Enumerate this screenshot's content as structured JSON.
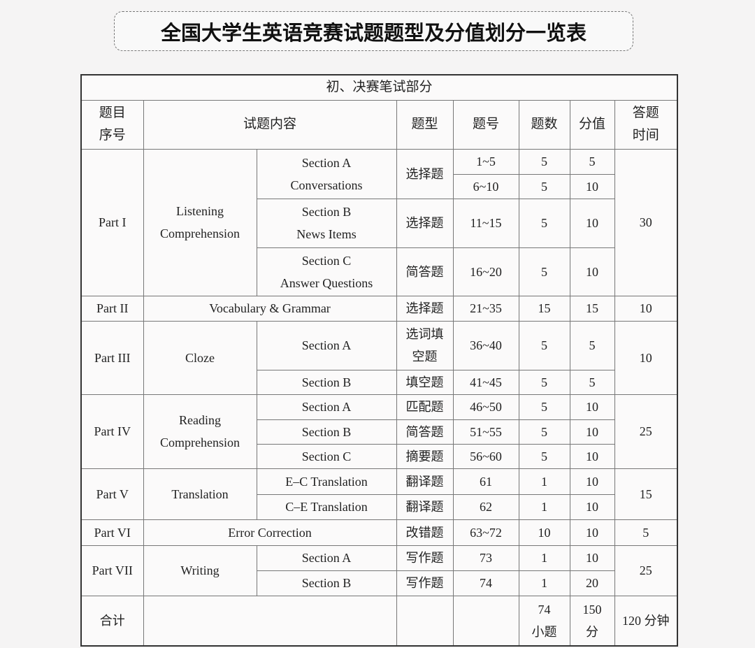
{
  "title": "全国大学生英语竞赛试题题型及分值划分一览表",
  "table": {
    "caption": "初、决赛笔试部分",
    "headers": [
      "题目\n序号",
      "试题内容",
      "题型",
      "题号",
      "题数",
      "分值",
      "答题\n时间"
    ],
    "rows": [
      [
        "Part I",
        "Listening\nComprehension",
        "Section A\nConversations",
        "选择题",
        "1~5",
        "5",
        "5",
        "30"
      ],
      [
        "6~10",
        "5",
        "10"
      ],
      [
        "Section B\nNews Items",
        "选择题",
        "11~15",
        "5",
        "10"
      ],
      [
        "Section C\nAnswer Questions",
        "简答题",
        "16~20",
        "5",
        "10"
      ],
      [
        "Part II",
        "Vocabulary & Grammar",
        "选择题",
        "21~35",
        "15",
        "15",
        "10"
      ],
      [
        "Part III",
        "Cloze",
        "Section A",
        "选词填\n空题",
        "36~40",
        "5",
        "5",
        "10"
      ],
      [
        "Section B",
        "填空题",
        "41~45",
        "5",
        "5"
      ],
      [
        "Part IV",
        "Reading\nComprehension",
        "Section A",
        "匹配题",
        "46~50",
        "5",
        "10",
        "25"
      ],
      [
        "Section B",
        "简答题",
        "51~55",
        "5",
        "10"
      ],
      [
        "Section C",
        "摘要题",
        "56~60",
        "5",
        "10"
      ],
      [
        "Part V",
        "Translation",
        "E–C Translation",
        "翻译题",
        "61",
        "1",
        "10",
        "15"
      ],
      [
        "C–E Translation",
        "翻译题",
        "62",
        "1",
        "10"
      ],
      [
        "Part VI",
        "Error Correction",
        "改错题",
        "63~72",
        "10",
        "10",
        "5"
      ],
      [
        "Part VII",
        "Writing",
        "Section A",
        "写作题",
        "73",
        "1",
        "10",
        "25"
      ],
      [
        "Section B",
        "写作题",
        "74",
        "1",
        "20"
      ],
      [
        "合计",
        "",
        "",
        "",
        "74\n小题",
        "150\n分",
        "120 分钟"
      ]
    ]
  }
}
